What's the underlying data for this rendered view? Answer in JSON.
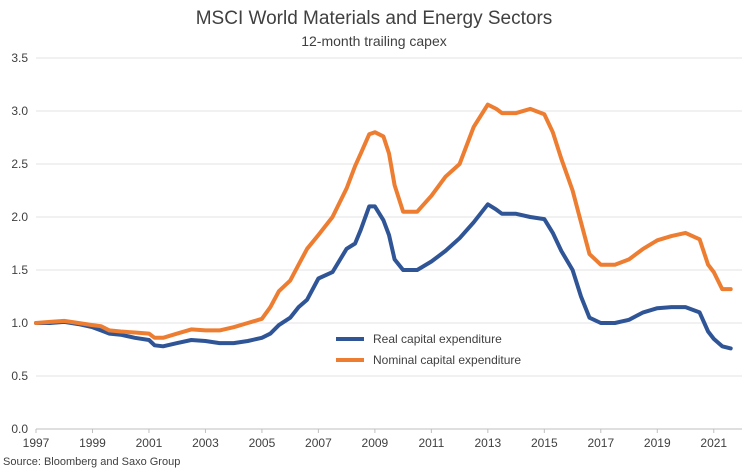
{
  "chart_data": {
    "type": "line",
    "title": "MSCI World Materials and Energy Sectors",
    "subtitle": "12-month trailing capex",
    "source": "Source: Bloomberg and Saxo Group",
    "ylim": [
      0,
      3.5
    ],
    "y_ticks": [
      "0.0",
      "0.5",
      "1.0",
      "1.5",
      "2.0",
      "2.5",
      "3.0",
      "3.5"
    ],
    "xlim": [
      1997,
      2022
    ],
    "x_ticks": [
      "1997",
      "1999",
      "2001",
      "2003",
      "2005",
      "2007",
      "2009",
      "2011",
      "2013",
      "2015",
      "2017",
      "2019",
      "2021"
    ],
    "grid": true,
    "legend": "center-right",
    "series": [
      {
        "name": "Real capital expenditure",
        "color": "#2F5597",
        "points": [
          [
            1997.0,
            1.0
          ],
          [
            1997.5,
            1.0
          ],
          [
            1998.0,
            1.01
          ],
          [
            1998.5,
            0.99
          ],
          [
            1999.0,
            0.96
          ],
          [
            1999.3,
            0.93
          ],
          [
            1999.6,
            0.9
          ],
          [
            2000.0,
            0.89
          ],
          [
            2000.5,
            0.86
          ],
          [
            2001.0,
            0.84
          ],
          [
            2001.2,
            0.79
          ],
          [
            2001.5,
            0.78
          ],
          [
            2002.0,
            0.81
          ],
          [
            2002.5,
            0.84
          ],
          [
            2003.0,
            0.83
          ],
          [
            2003.5,
            0.81
          ],
          [
            2004.0,
            0.81
          ],
          [
            2004.5,
            0.83
          ],
          [
            2005.0,
            0.86
          ],
          [
            2005.3,
            0.9
          ],
          [
            2005.6,
            0.98
          ],
          [
            2006.0,
            1.05
          ],
          [
            2006.3,
            1.15
          ],
          [
            2006.6,
            1.22
          ],
          [
            2007.0,
            1.42
          ],
          [
            2007.5,
            1.48
          ],
          [
            2008.0,
            1.7
          ],
          [
            2008.3,
            1.75
          ],
          [
            2008.5,
            1.88
          ],
          [
            2008.8,
            2.1
          ],
          [
            2009.0,
            2.1
          ],
          [
            2009.3,
            1.97
          ],
          [
            2009.5,
            1.83
          ],
          [
            2009.7,
            1.6
          ],
          [
            2010.0,
            1.5
          ],
          [
            2010.5,
            1.5
          ],
          [
            2011.0,
            1.58
          ],
          [
            2011.5,
            1.68
          ],
          [
            2012.0,
            1.8
          ],
          [
            2012.5,
            1.95
          ],
          [
            2013.0,
            2.12
          ],
          [
            2013.3,
            2.07
          ],
          [
            2013.5,
            2.03
          ],
          [
            2014.0,
            2.03
          ],
          [
            2014.5,
            2.0
          ],
          [
            2015.0,
            1.98
          ],
          [
            2015.3,
            1.85
          ],
          [
            2015.6,
            1.68
          ],
          [
            2016.0,
            1.5
          ],
          [
            2016.3,
            1.25
          ],
          [
            2016.6,
            1.05
          ],
          [
            2017.0,
            1.0
          ],
          [
            2017.5,
            1.0
          ],
          [
            2018.0,
            1.03
          ],
          [
            2018.5,
            1.1
          ],
          [
            2019.0,
            1.14
          ],
          [
            2019.5,
            1.15
          ],
          [
            2020.0,
            1.15
          ],
          [
            2020.5,
            1.1
          ],
          [
            2020.8,
            0.92
          ],
          [
            2021.0,
            0.85
          ],
          [
            2021.3,
            0.78
          ],
          [
            2021.6,
            0.76
          ]
        ]
      },
      {
        "name": "Nominal capital expenditure",
        "color": "#ED7D31",
        "points": [
          [
            1997.0,
            1.0
          ],
          [
            1997.5,
            1.01
          ],
          [
            1998.0,
            1.02
          ],
          [
            1998.5,
            1.0
          ],
          [
            1999.0,
            0.98
          ],
          [
            1999.3,
            0.97
          ],
          [
            1999.6,
            0.93
          ],
          [
            2000.0,
            0.92
          ],
          [
            2000.5,
            0.91
          ],
          [
            2001.0,
            0.9
          ],
          [
            2001.2,
            0.86
          ],
          [
            2001.5,
            0.86
          ],
          [
            2002.0,
            0.9
          ],
          [
            2002.5,
            0.94
          ],
          [
            2003.0,
            0.93
          ],
          [
            2003.5,
            0.93
          ],
          [
            2004.0,
            0.96
          ],
          [
            2004.5,
            1.0
          ],
          [
            2005.0,
            1.04
          ],
          [
            2005.3,
            1.15
          ],
          [
            2005.6,
            1.3
          ],
          [
            2006.0,
            1.4
          ],
          [
            2006.3,
            1.55
          ],
          [
            2006.6,
            1.7
          ],
          [
            2007.0,
            1.83
          ],
          [
            2007.5,
            2.0
          ],
          [
            2008.0,
            2.27
          ],
          [
            2008.3,
            2.48
          ],
          [
            2008.5,
            2.6
          ],
          [
            2008.8,
            2.78
          ],
          [
            2009.0,
            2.8
          ],
          [
            2009.3,
            2.76
          ],
          [
            2009.5,
            2.6
          ],
          [
            2009.7,
            2.3
          ],
          [
            2010.0,
            2.05
          ],
          [
            2010.5,
            2.05
          ],
          [
            2011.0,
            2.2
          ],
          [
            2011.5,
            2.38
          ],
          [
            2012.0,
            2.5
          ],
          [
            2012.5,
            2.85
          ],
          [
            2013.0,
            3.06
          ],
          [
            2013.3,
            3.02
          ],
          [
            2013.5,
            2.98
          ],
          [
            2014.0,
            2.98
          ],
          [
            2014.5,
            3.02
          ],
          [
            2015.0,
            2.97
          ],
          [
            2015.3,
            2.8
          ],
          [
            2015.6,
            2.55
          ],
          [
            2016.0,
            2.25
          ],
          [
            2016.3,
            1.95
          ],
          [
            2016.6,
            1.65
          ],
          [
            2017.0,
            1.55
          ],
          [
            2017.5,
            1.55
          ],
          [
            2018.0,
            1.6
          ],
          [
            2018.5,
            1.7
          ],
          [
            2019.0,
            1.78
          ],
          [
            2019.5,
            1.82
          ],
          [
            2020.0,
            1.85
          ],
          [
            2020.5,
            1.79
          ],
          [
            2020.8,
            1.55
          ],
          [
            2021.0,
            1.48
          ],
          [
            2021.3,
            1.32
          ],
          [
            2021.6,
            1.32
          ]
        ]
      }
    ]
  }
}
